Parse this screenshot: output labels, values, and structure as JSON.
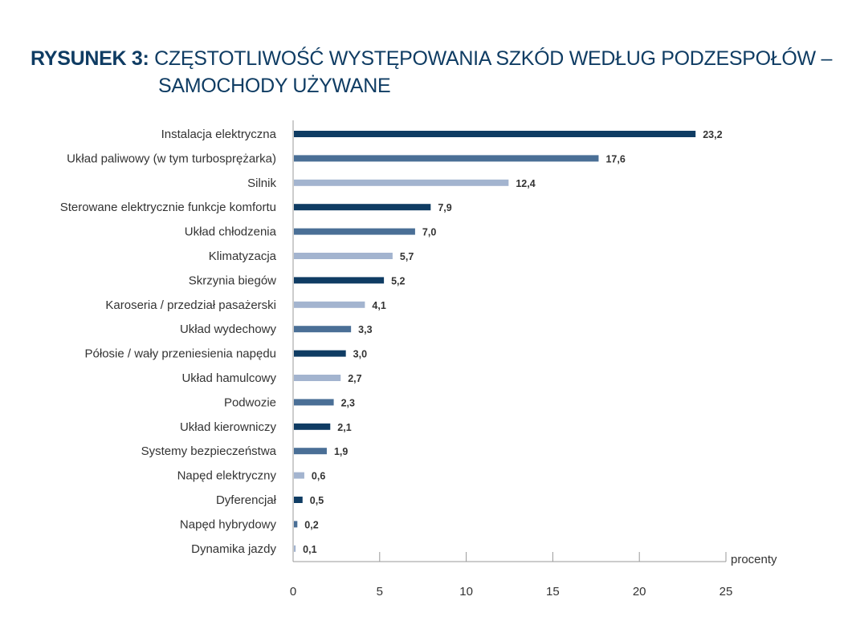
{
  "title": {
    "prefix": "RYSUNEK 3:",
    "line1": "CZĘSTOTLIWOŚĆ WYSTĘPOWANIA SZKÓD WEDŁUG PODZESPOŁÓW –",
    "line2": "SAMOCHODY UŻYWANE"
  },
  "chart_data": {
    "type": "bar",
    "orientation": "horizontal",
    "title": "CZĘSTOTLIWOŚĆ WYSTĘPOWANIA SZKÓD WEDŁUG PODZESPOŁÓW – SAMOCHODY UŻYWANE",
    "xlabel": "procenty",
    "xlim": [
      0,
      25
    ],
    "xticks": [
      "0",
      "5",
      "10",
      "15",
      "20",
      "25"
    ],
    "categories": [
      "Instalacja elektryczna",
      "Układ paliwowy (w tym turbosprężarka)",
      "Silnik",
      "Sterowane elektrycznie funkcje komfortu",
      "Układ chłodzenia",
      "Klimatyzacja",
      "Skrzynia biegów",
      "Karoseria / przedział pasażerski",
      "Układ wydechowy",
      "Półosie / wały przeniesienia napędu",
      "Układ hamulcowy",
      "Podwozie",
      "Układ kierowniczy",
      "Systemy bezpieczeństwa",
      "Napęd elektryczny",
      "Dyferencjał",
      "Napęd hybrydowy",
      "Dynamika jazdy"
    ],
    "values": [
      23.2,
      17.6,
      12.4,
      7.9,
      7.0,
      5.7,
      5.2,
      4.1,
      3.3,
      3.0,
      2.7,
      2.3,
      2.1,
      1.9,
      0.6,
      0.5,
      0.2,
      0.1
    ],
    "value_labels": [
      "23,2",
      "17,6",
      "12,4",
      "7,9",
      "7,0",
      "5,7",
      "5,2",
      "4,1",
      "3,3",
      "3,0",
      "2,7",
      "2,3",
      "2,1",
      "1,9",
      "0,6",
      "0,5",
      "0,2",
      "0,1"
    ],
    "bar_colors": [
      "#0f3c63",
      "#4a6f96",
      "#a3b4cf",
      "#0f3c63",
      "#4a6f96",
      "#a3b4cf",
      "#0f3c63",
      "#a3b4cf",
      "#4a6f96",
      "#0f3c63",
      "#a3b4cf",
      "#4a6f96",
      "#0f3c63",
      "#4a6f96",
      "#a3b4cf",
      "#0f3c63",
      "#4a6f96",
      "#a3b4cf"
    ],
    "grid": false
  }
}
